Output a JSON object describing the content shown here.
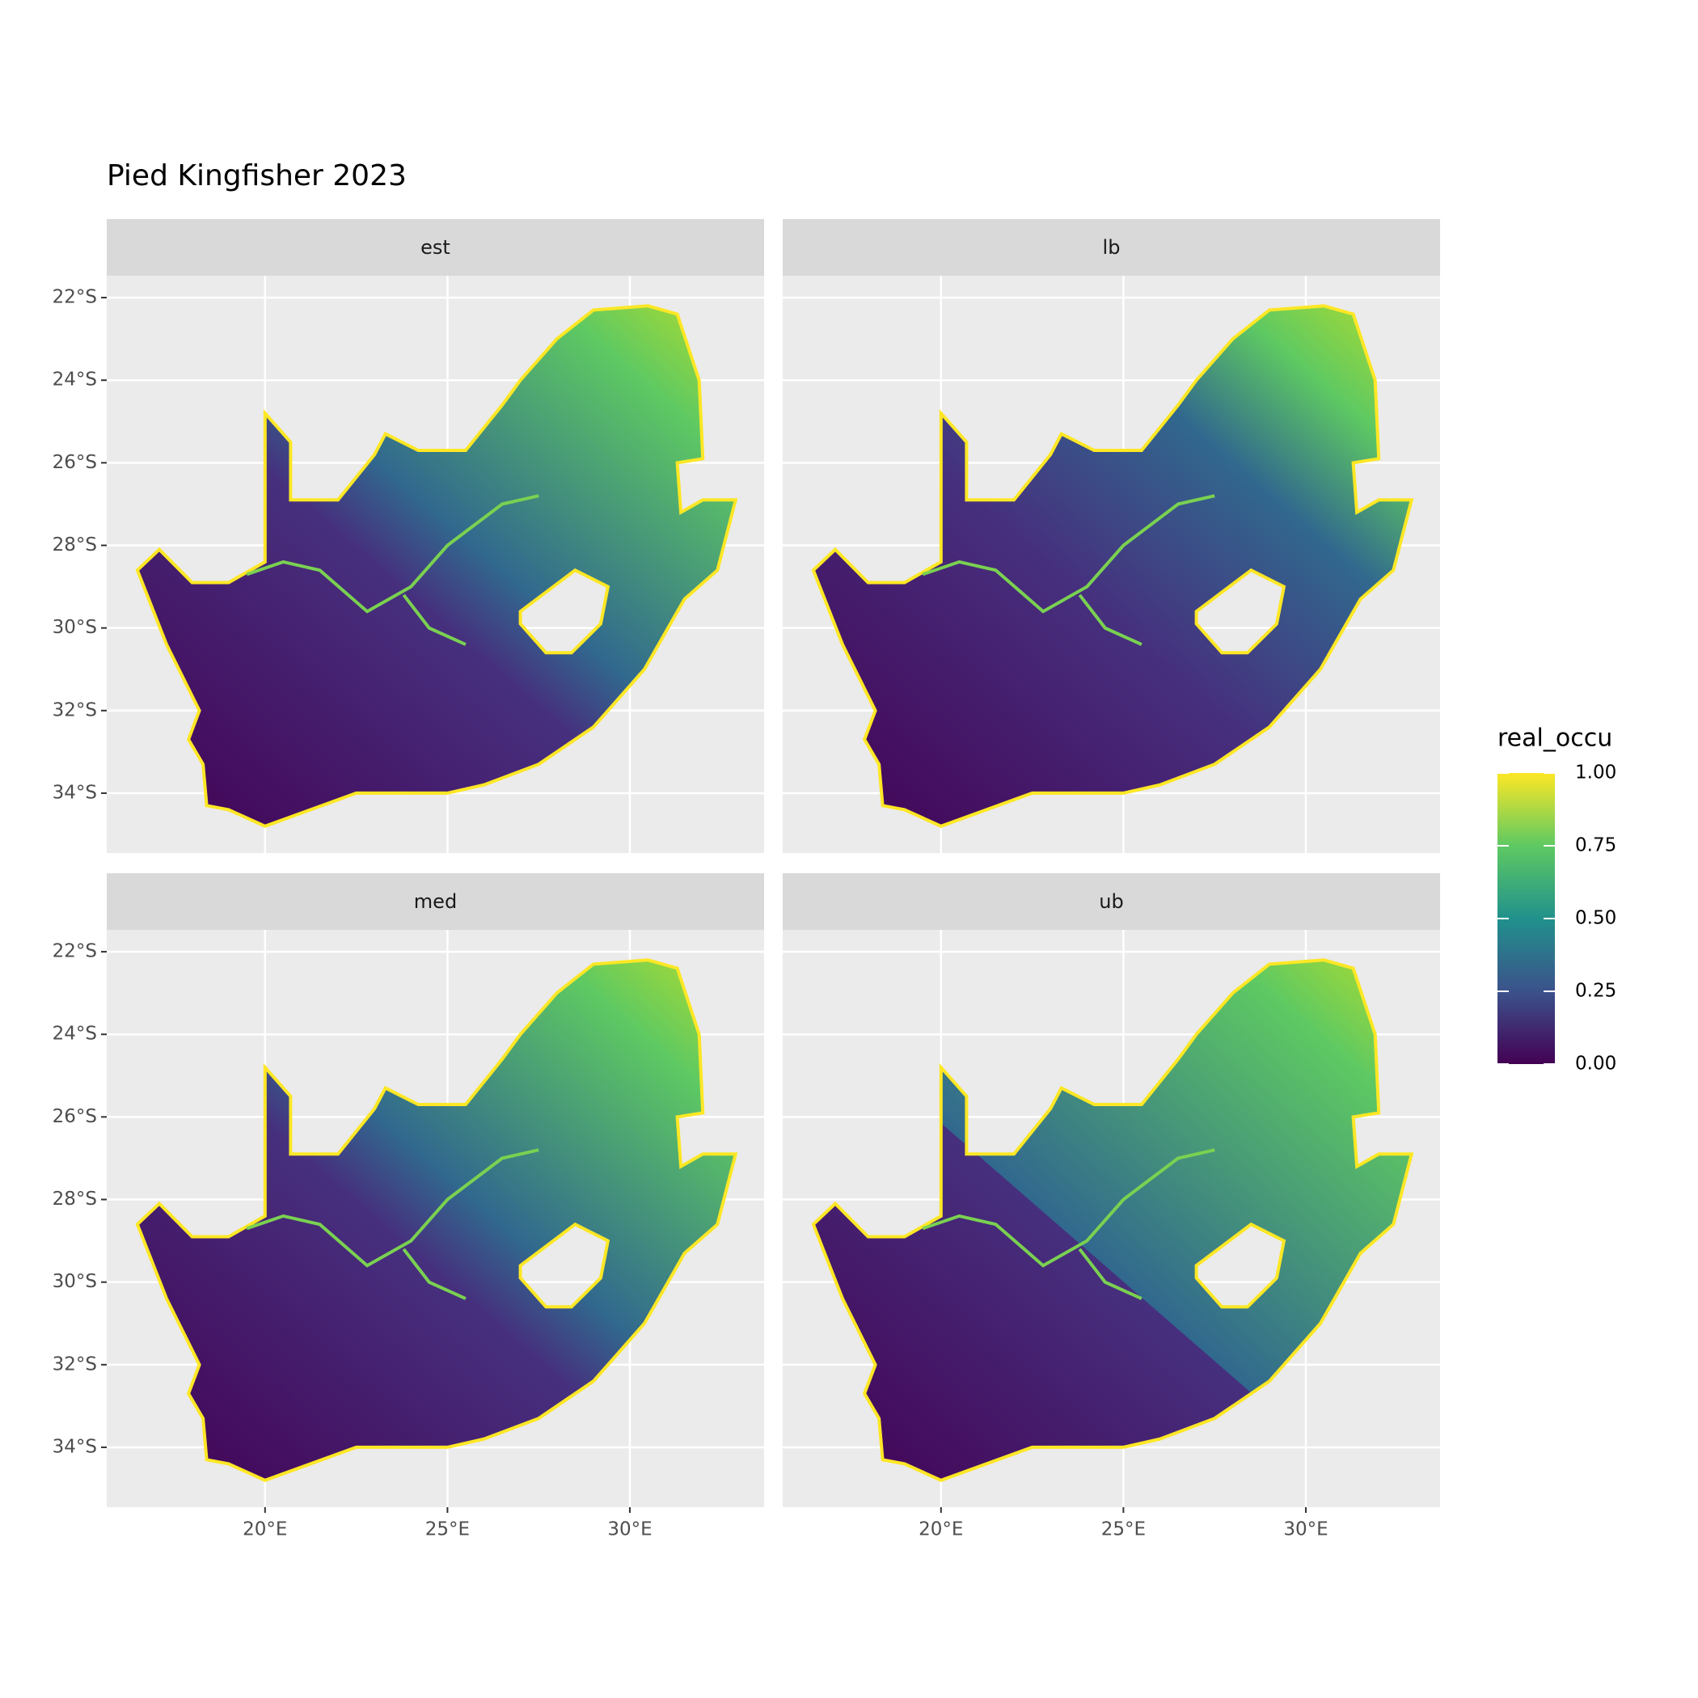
{
  "chart_data": {
    "type": "raster",
    "title": "Pied Kingfisher 2023",
    "facets": [
      "est",
      "lb",
      "med",
      "ub"
    ],
    "xlim": [
      15.66,
      33.68
    ],
    "ylim": [
      -35.45,
      -21.47
    ],
    "xticks": [
      {
        "value": 20,
        "label": "20°E"
      },
      {
        "value": 25,
        "label": "25°E"
      },
      {
        "value": 30,
        "label": "30°E"
      }
    ],
    "yticks": [
      {
        "value": -22,
        "label": "22°S"
      },
      {
        "value": -24,
        "label": "24°S"
      },
      {
        "value": -26,
        "label": "26°S"
      },
      {
        "value": -28,
        "label": "28°S"
      },
      {
        "value": -30,
        "label": "30°S"
      },
      {
        "value": -32,
        "label": "32°S"
      },
      {
        "value": -34,
        "label": "34°S"
      }
    ],
    "grid": true,
    "legend": {
      "title": "real_occu",
      "clim": [
        0,
        1
      ],
      "ticks": [
        {
          "value": 0,
          "label": "0.00"
        },
        {
          "value": 0.25,
          "label": "0.25"
        },
        {
          "value": 0.5,
          "label": "0.50"
        },
        {
          "value": 0.75,
          "label": "0.75"
        },
        {
          "value": 1,
          "label": "1.00"
        }
      ]
    }
  }
}
